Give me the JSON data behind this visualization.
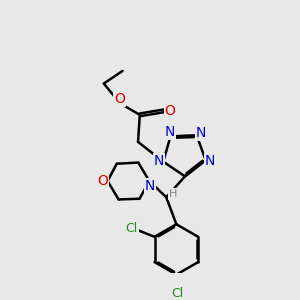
{
  "bg_color": "#e8e8e8",
  "bond_color": "#000000",
  "bond_width": 1.8,
  "atom_colors": {
    "O": "#dd0000",
    "N": "#0000cc",
    "Cl": "#228B22",
    "H": "#888888"
  },
  "font_size_atom": 10,
  "font_size_cl": 9,
  "font_size_h": 8
}
